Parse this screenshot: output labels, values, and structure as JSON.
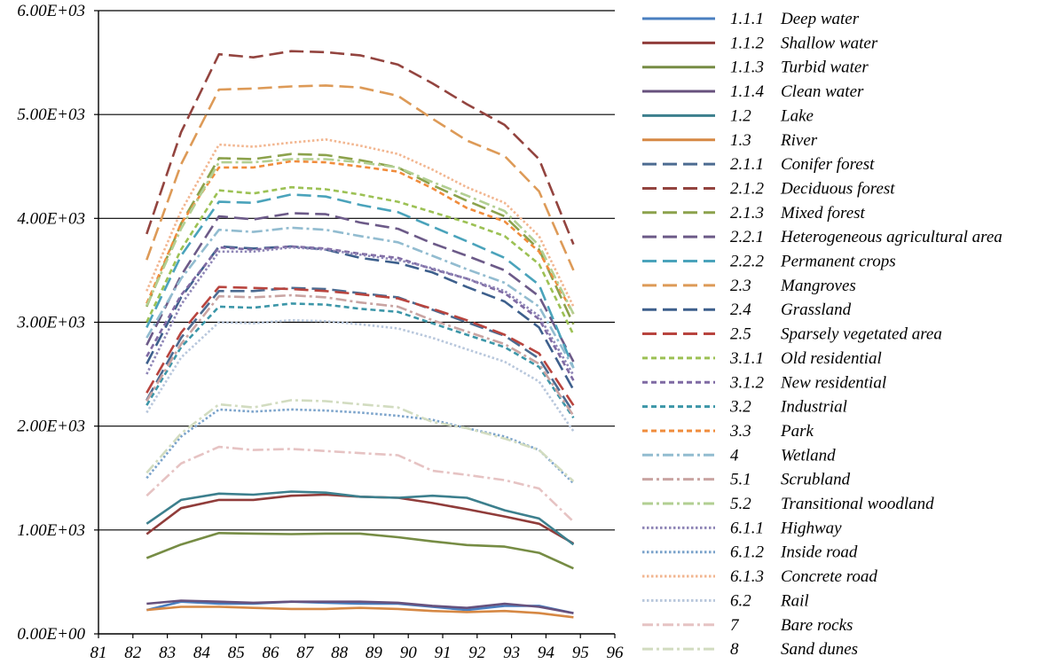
{
  "chart_data": {
    "type": "line",
    "title": "",
    "xlabel": "",
    "ylabel": "",
    "xlim": [
      81,
      96
    ],
    "ylim": [
      0,
      6000
    ],
    "grid": "horizontal",
    "legend_position": "right",
    "x_ticks": [
      "81",
      "82",
      "83",
      "84",
      "85",
      "86",
      "87",
      "88",
      "89",
      "90",
      "91",
      "92",
      "93",
      "94",
      "95",
      "96"
    ],
    "y_ticks": [
      {
        "value": 0,
        "label": "0.00E+00"
      },
      {
        "value": 1000,
        "label": "1.00E+03"
      },
      {
        "value": 2000,
        "label": "2.00E+03"
      },
      {
        "value": 3000,
        "label": "3.00E+03"
      },
      {
        "value": 4000,
        "label": "4.00E+03"
      },
      {
        "value": 5000,
        "label": "5.00E+03"
      },
      {
        "value": 6000,
        "label": "6.00E+03"
      }
    ],
    "x": [
      82.4,
      83.4,
      84.5,
      85.5,
      86.6,
      87.6,
      88.6,
      89.7,
      90.7,
      91.7,
      92.8,
      93.8,
      94.8
    ],
    "series": [
      {
        "code": "1.1.1",
        "name": "Deep water",
        "color": "#4a7fc0",
        "dash": "solid",
        "values": [
          230,
          310,
          290,
          290,
          310,
          300,
          290,
          290,
          260,
          230,
          270,
          270,
          200
        ]
      },
      {
        "code": "1.1.2",
        "name": "Shallow water",
        "color": "#903c3a",
        "dash": "solid",
        "values": [
          960,
          1210,
          1290,
          1290,
          1330,
          1340,
          1320,
          1310,
          1260,
          1200,
          1130,
          1060,
          870
        ]
      },
      {
        "code": "1.1.3",
        "name": "Turbid water",
        "color": "#768c44",
        "dash": "solid",
        "values": [
          730,
          860,
          970,
          965,
          960,
          965,
          965,
          930,
          890,
          855,
          840,
          780,
          630
        ]
      },
      {
        "code": "1.1.4",
        "name": "Clean water",
        "color": "#67517d",
        "dash": "solid",
        "values": [
          290,
          320,
          310,
          300,
          310,
          310,
          310,
          300,
          270,
          250,
          290,
          260,
          200
        ]
      },
      {
        "code": "1.2",
        "name": "Lake",
        "color": "#3c7f8d",
        "dash": "solid",
        "values": [
          1060,
          1290,
          1350,
          1340,
          1370,
          1360,
          1320,
          1310,
          1330,
          1310,
          1190,
          1110,
          860
        ]
      },
      {
        "code": "1.3",
        "name": "River",
        "color": "#d68844",
        "dash": "solid",
        "values": [
          230,
          260,
          260,
          250,
          240,
          240,
          250,
          240,
          220,
          210,
          220,
          200,
          160
        ]
      },
      {
        "code": "2.1.1",
        "name": "Conifer forest",
        "color": "#4c6b91",
        "dash": "long",
        "values": [
          2250,
          2850,
          3300,
          3300,
          3330,
          3320,
          3280,
          3240,
          3120,
          3000,
          2870,
          2650,
          2130
        ]
      },
      {
        "code": "2.1.2",
        "name": "Deciduous forest",
        "color": "#93443f",
        "dash": "long",
        "values": [
          3850,
          4830,
          5580,
          5550,
          5610,
          5600,
          5570,
          5480,
          5300,
          5100,
          4900,
          4570,
          3750
        ]
      },
      {
        "code": "2.1.3",
        "name": "Mixed forest",
        "color": "#8ca24c",
        "dash": "long",
        "values": [
          3150,
          3950,
          4580,
          4570,
          4620,
          4610,
          4560,
          4490,
          4320,
          4170,
          4020,
          3700,
          2980
        ]
      },
      {
        "code": "2.2.1",
        "name": "Heterogeneous agricultural area",
        "color": "#6c5a88",
        "dash": "long",
        "values": [
          2780,
          3450,
          4020,
          3990,
          4050,
          4040,
          3960,
          3900,
          3760,
          3640,
          3500,
          3250,
          2620
        ]
      },
      {
        "code": "2.2.2",
        "name": "Permanent crops",
        "color": "#4aa3bb",
        "dash": "long",
        "values": [
          2950,
          3640,
          4160,
          4150,
          4230,
          4210,
          4130,
          4060,
          3920,
          3780,
          3620,
          3360,
          2560
        ]
      },
      {
        "code": "2.3",
        "name": "Mangroves",
        "color": "#dd9a57",
        "dash": "long",
        "values": [
          3600,
          4520,
          5240,
          5250,
          5270,
          5280,
          5260,
          5180,
          4960,
          4750,
          4600,
          4260,
          3500
        ]
      },
      {
        "code": "2.4",
        "name": "Grassland",
        "color": "#3d5f8c",
        "dash": "long",
        "values": [
          2600,
          3240,
          3730,
          3710,
          3730,
          3700,
          3620,
          3570,
          3480,
          3340,
          3200,
          2950,
          2350
        ]
      },
      {
        "code": "2.5",
        "name": "Sparsely vegetated area",
        "color": "#b8443e",
        "dash": "long",
        "values": [
          2320,
          2900,
          3340,
          3330,
          3320,
          3300,
          3270,
          3230,
          3130,
          3020,
          2880,
          2700,
          2200
        ]
      },
      {
        "code": "3.1.1",
        "name": "Old residential",
        "color": "#9cc154",
        "dash": "short",
        "values": [
          3000,
          3700,
          4270,
          4240,
          4300,
          4280,
          4230,
          4160,
          4060,
          3960,
          3830,
          3560,
          2880
        ]
      },
      {
        "code": "3.1.2",
        "name": "New residential",
        "color": "#7f6aa3",
        "dash": "short",
        "values": [
          2670,
          3260,
          3720,
          3700,
          3730,
          3710,
          3660,
          3620,
          3510,
          3420,
          3280,
          3030,
          2440
        ]
      },
      {
        "code": "3.2",
        "name": "Industrial",
        "color": "#3c96a8",
        "dash": "short",
        "values": [
          2200,
          2760,
          3150,
          3140,
          3180,
          3170,
          3130,
          3100,
          2990,
          2880,
          2760,
          2570,
          2080
        ]
      },
      {
        "code": "3.3",
        "name": "Park",
        "color": "#f08c3c",
        "dash": "short",
        "values": [
          3180,
          3950,
          4490,
          4490,
          4550,
          4540,
          4500,
          4450,
          4290,
          4100,
          3970,
          3680,
          3080
        ]
      },
      {
        "code": "4",
        "name": "Wetland",
        "color": "#92bcd0",
        "dash": "dashdot",
        "values": [
          2850,
          3420,
          3890,
          3870,
          3910,
          3890,
          3830,
          3770,
          3640,
          3510,
          3380,
          3150,
          2560
        ]
      },
      {
        "code": "5.1",
        "name": "Scrubland",
        "color": "#c9a4a2",
        "dash": "dashdot",
        "values": [
          2240,
          2790,
          3250,
          3240,
          3260,
          3240,
          3190,
          3150,
          3020,
          2910,
          2790,
          2600,
          2100
        ]
      },
      {
        "code": "5.2",
        "name": "Transitional woodland",
        "color": "#b2cf92",
        "dash": "dashdot",
        "values": [
          3160,
          3900,
          4540,
          4540,
          4570,
          4570,
          4540,
          4490,
          4350,
          4220,
          4070,
          3740,
          3080
        ]
      },
      {
        "code": "6.1.1",
        "name": "Highway",
        "color": "#8e85b6",
        "dash": "dotted",
        "values": [
          2500,
          3170,
          3680,
          3680,
          3720,
          3700,
          3650,
          3600,
          3520,
          3420,
          3300,
          3060,
          2490
        ]
      },
      {
        "code": "6.1.2",
        "name": "Inside road",
        "color": "#7ba3cb",
        "dash": "dotted",
        "values": [
          1500,
          1900,
          2160,
          2140,
          2160,
          2150,
          2130,
          2100,
          2060,
          1980,
          1900,
          1770,
          1450
        ]
      },
      {
        "code": "6.1.3",
        "name": "Concrete road",
        "color": "#f2b690",
        "dash": "dotted",
        "values": [
          3300,
          4070,
          4710,
          4690,
          4730,
          4760,
          4700,
          4620,
          4470,
          4300,
          4150,
          3830,
          3150
        ]
      },
      {
        "code": "6.2",
        "name": "Rail",
        "color": "#b8c7dc",
        "dash": "dotted",
        "values": [
          2130,
          2660,
          3000,
          2990,
          3020,
          3010,
          2980,
          2940,
          2850,
          2740,
          2620,
          2430,
          1950
        ]
      },
      {
        "code": "7",
        "name": "Bare rocks",
        "color": "#e6c3c3",
        "dash": "dashdot",
        "values": [
          1330,
          1640,
          1800,
          1770,
          1780,
          1760,
          1740,
          1720,
          1570,
          1530,
          1480,
          1400,
          1080
        ]
      },
      {
        "code": "8",
        "name": "Sand dunes",
        "color": "#d2dcc0",
        "dash": "dashdot",
        "values": [
          1550,
          1930,
          2210,
          2180,
          2250,
          2240,
          2210,
          2180,
          2040,
          1980,
          1880,
          1770,
          1470
        ]
      }
    ]
  }
}
